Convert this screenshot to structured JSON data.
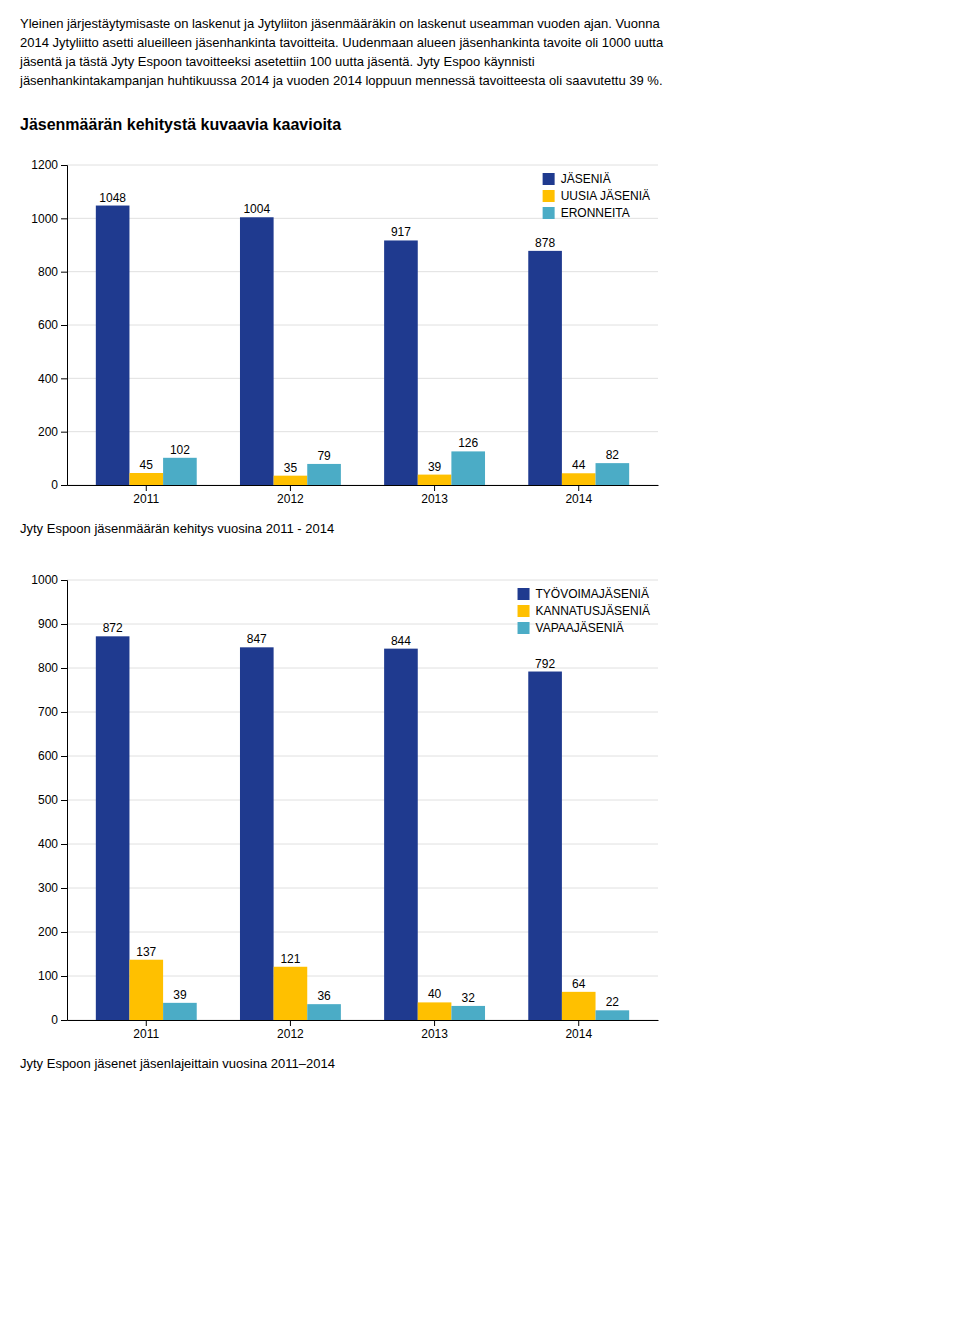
{
  "header": [
    "Yleinen järjestäytymisaste on laskenut ja Jytyliiton jäsenmääräkin on laskenut useamman vuoden ajan. Vuonna",
    "2014 Jytyliitto asetti alueilleen jäsenhankinta tavoitteita. Uudenmaan alueen jäsenhankinta tavoite oli 1000 uutta",
    "jäsentä ja tästä Jyty Espoon tavoitteeksi asetettiin 100 uutta jäsentä. Jyty Espoo käynnisti",
    "jäsenhankintakampanjan huhtikuussa 2014 ja vuoden 2014 loppuun mennessä tavoitteesta oli saavutettu 39 %."
  ],
  "section_title": "Jäsenmäärän kehitystä kuvaavia kaavioita",
  "chart_data": [
    {
      "type": "bar",
      "title": "Jyty Espoon jäsenmäärän kehitys vuosina 2011 - 2014",
      "categories": [
        "2011",
        "2012",
        "2013",
        "2014"
      ],
      "series": [
        {
          "name": "JÄSENIÄ",
          "color": "#1F3A8F",
          "values": [
            1048,
            1004,
            917,
            878
          ]
        },
        {
          "name": "UUSIA JÄSENIÄ",
          "color": "#FFC000",
          "values": [
            45,
            35,
            39,
            44
          ]
        },
        {
          "name": "ERONNEITA",
          "color": "#4BACC6",
          "values": [
            102,
            79,
            126,
            82
          ]
        }
      ],
      "ylim": [
        0,
        1200
      ],
      "yticks": [
        0,
        200,
        400,
        600,
        800,
        1000,
        1200
      ],
      "grid": true,
      "legend": "upper right",
      "data_labels": true
    },
    {
      "type": "bar",
      "title": "Jyty Espoon jäsenet jäsenlajeittain vuosina 2011–2014",
      "categories": [
        "2011",
        "2012",
        "2013",
        "2014"
      ],
      "series": [
        {
          "name": "TYÖVOIMAJÄSENIÄ",
          "color": "#1F3A8F",
          "values": [
            872,
            847,
            844,
            792
          ]
        },
        {
          "name": "KANNATUSJÄSENIÄ",
          "color": "#FFC000",
          "values": [
            137,
            121,
            40,
            64
          ]
        },
        {
          "name": "VAPAAJÄSENIÄ",
          "color": "#4BACC6",
          "values": [
            39,
            36,
            32,
            22
          ]
        }
      ],
      "ylim": [
        0,
        1000
      ],
      "yticks": [
        0,
        100,
        200,
        300,
        400,
        500,
        600,
        700,
        800,
        900,
        1000
      ],
      "grid": true,
      "legend": "upper right",
      "data_labels": true
    }
  ]
}
